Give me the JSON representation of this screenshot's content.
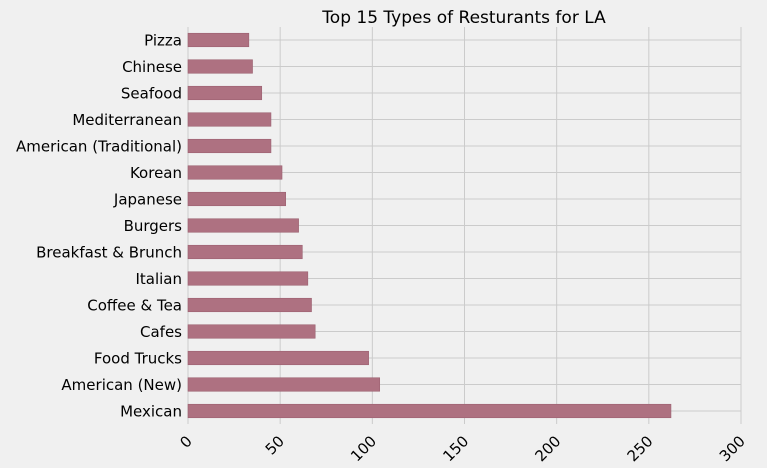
{
  "chart_data": {
    "type": "bar",
    "orientation": "horizontal",
    "title": "Top 15 Types of Resturants for LA",
    "xlabel": "",
    "ylabel": "",
    "xlim": [
      0,
      300
    ],
    "xticks": [
      "0",
      "50",
      "100",
      "150",
      "200",
      "250",
      "300"
    ],
    "grid": true,
    "bar_color": "#ae7181",
    "background_color": "#f0f0f0",
    "categories": [
      "Mexican",
      "American (New)",
      "Food Trucks",
      "Cafes",
      "Coffee & Tea",
      "Italian",
      "Breakfast & Brunch",
      "Burgers",
      "Japanese",
      "Korean",
      "American (Traditional)",
      "Mediterranean",
      "Seafood",
      "Chinese",
      "Pizza"
    ],
    "values": [
      262,
      104,
      98,
      69,
      67,
      65,
      62,
      60,
      53,
      51,
      45,
      45,
      40,
      35,
      33
    ]
  }
}
